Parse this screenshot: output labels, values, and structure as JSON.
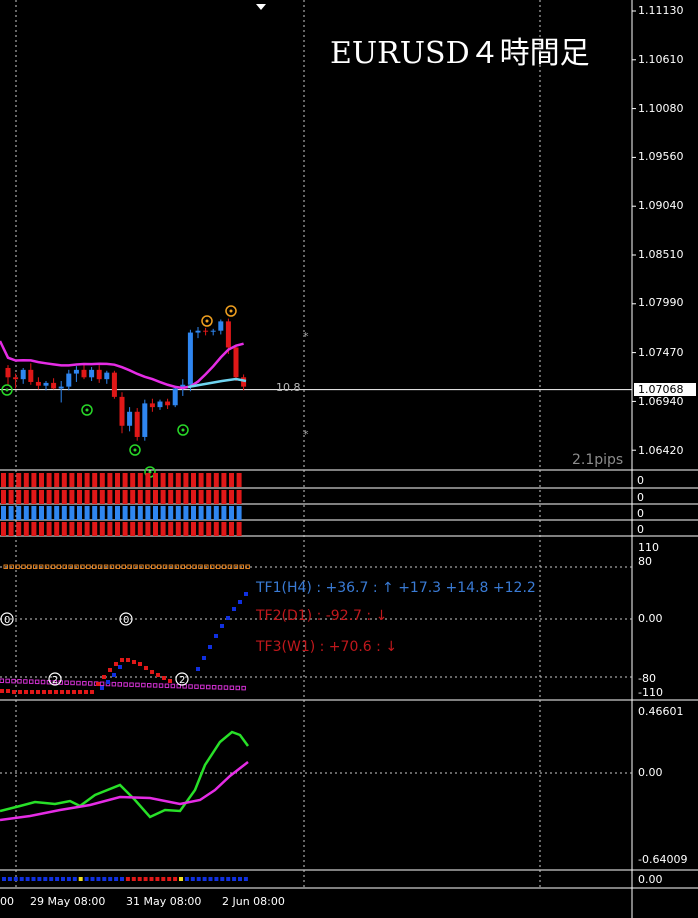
{
  "title": "EURUSD４時間足",
  "price_axis": [
    "1.11130",
    "1.10610",
    "1.10080",
    "1.09560",
    "1.09040",
    "1.08510",
    "1.07990",
    "1.07470",
    "1.06940",
    "1.06420"
  ],
  "current_price": "1.07068",
  "spread": "2.1pips",
  "level_label": "10.8",
  "bars_panel_values": [
    "0",
    "0",
    "0",
    "0"
  ],
  "osc_axis": [
    "110",
    "80",
    "0.00",
    "-80",
    "-110"
  ],
  "tf_lines": [
    {
      "text": "TF1(H4) : +36.7 : ↑  +17.3 +14.8 +12.2",
      "color": "#3a7bd5"
    },
    {
      "text": "TF2(D1) : -92.7 : ↓",
      "color": "#c0181c"
    },
    {
      "text": "TF3(W1) : +70.6 : ↓",
      "color": "#c0181c"
    }
  ],
  "macd_axis": [
    "0.46601",
    "0.00",
    "-0.64009"
  ],
  "bottom_value": "0.00",
  "time_labels": [
    "00",
    "29 May 08:00",
    "31 May 08:00",
    "2 Jun 08:00"
  ],
  "chart_data": {
    "type": "candlestick",
    "ylim": [
      1.0642,
      1.1113
    ],
    "candles": [
      {
        "o": 1.073,
        "h": 1.0733,
        "l": 1.0712,
        "c": 1.072
      },
      {
        "o": 1.072,
        "h": 1.0724,
        "l": 1.0708,
        "c": 1.0718
      },
      {
        "o": 1.0718,
        "h": 1.073,
        "l": 1.0713,
        "c": 1.0728
      },
      {
        "o": 1.0728,
        "h": 1.0735,
        "l": 1.0712,
        "c": 1.0715
      },
      {
        "o": 1.0715,
        "h": 1.072,
        "l": 1.0707,
        "c": 1.0711
      },
      {
        "o": 1.0711,
        "h": 1.0716,
        "l": 1.0706,
        "c": 1.0714
      },
      {
        "o": 1.0714,
        "h": 1.0719,
        "l": 1.0707,
        "c": 1.0708
      },
      {
        "o": 1.0708,
        "h": 1.0716,
        "l": 1.0693,
        "c": 1.071
      },
      {
        "o": 1.071,
        "h": 1.0728,
        "l": 1.0706,
        "c": 1.0724
      },
      {
        "o": 1.0724,
        "h": 1.0732,
        "l": 1.0715,
        "c": 1.0728
      },
      {
        "o": 1.0728,
        "h": 1.0735,
        "l": 1.0718,
        "c": 1.072
      },
      {
        "o": 1.072,
        "h": 1.0731,
        "l": 1.0716,
        "c": 1.0728
      },
      {
        "o": 1.0728,
        "h": 1.0733,
        "l": 1.0714,
        "c": 1.0718
      },
      {
        "o": 1.0718,
        "h": 1.0727,
        "l": 1.0713,
        "c": 1.0725
      },
      {
        "o": 1.0725,
        "h": 1.0727,
        "l": 1.0697,
        "c": 1.0699
      },
      {
        "o": 1.0699,
        "h": 1.0704,
        "l": 1.066,
        "c": 1.0668
      },
      {
        "o": 1.0668,
        "h": 1.0688,
        "l": 1.0662,
        "c": 1.0683
      },
      {
        "o": 1.0683,
        "h": 1.0687,
        "l": 1.0652,
        "c": 1.0656
      },
      {
        "o": 1.0656,
        "h": 1.0696,
        "l": 1.0652,
        "c": 1.0692
      },
      {
        "o": 1.0692,
        "h": 1.0697,
        "l": 1.0683,
        "c": 1.0688
      },
      {
        "o": 1.0688,
        "h": 1.0696,
        "l": 1.0685,
        "c": 1.0694
      },
      {
        "o": 1.0694,
        "h": 1.0697,
        "l": 1.0686,
        "c": 1.069
      },
      {
        "o": 1.069,
        "h": 1.0711,
        "l": 1.0688,
        "c": 1.0708
      },
      {
        "o": 1.0708,
        "h": 1.0718,
        "l": 1.07,
        "c": 1.0712
      },
      {
        "o": 1.0712,
        "h": 1.0771,
        "l": 1.0705,
        "c": 1.0768
      },
      {
        "o": 1.0768,
        "h": 1.0774,
        "l": 1.0762,
        "c": 1.077
      },
      {
        "o": 1.077,
        "h": 1.0773,
        "l": 1.0765,
        "c": 1.0769
      },
      {
        "o": 1.0769,
        "h": 1.0772,
        "l": 1.0765,
        "c": 1.077
      },
      {
        "o": 1.077,
        "h": 1.0782,
        "l": 1.0766,
        "c": 1.078
      },
      {
        "o": 1.078,
        "h": 1.0783,
        "l": 1.0745,
        "c": 1.0752
      },
      {
        "o": 1.0752,
        "h": 1.0755,
        "l": 1.0716,
        "c": 1.072
      },
      {
        "o": 1.072,
        "h": 1.0723,
        "l": 1.0706,
        "c": 1.071
      }
    ]
  }
}
